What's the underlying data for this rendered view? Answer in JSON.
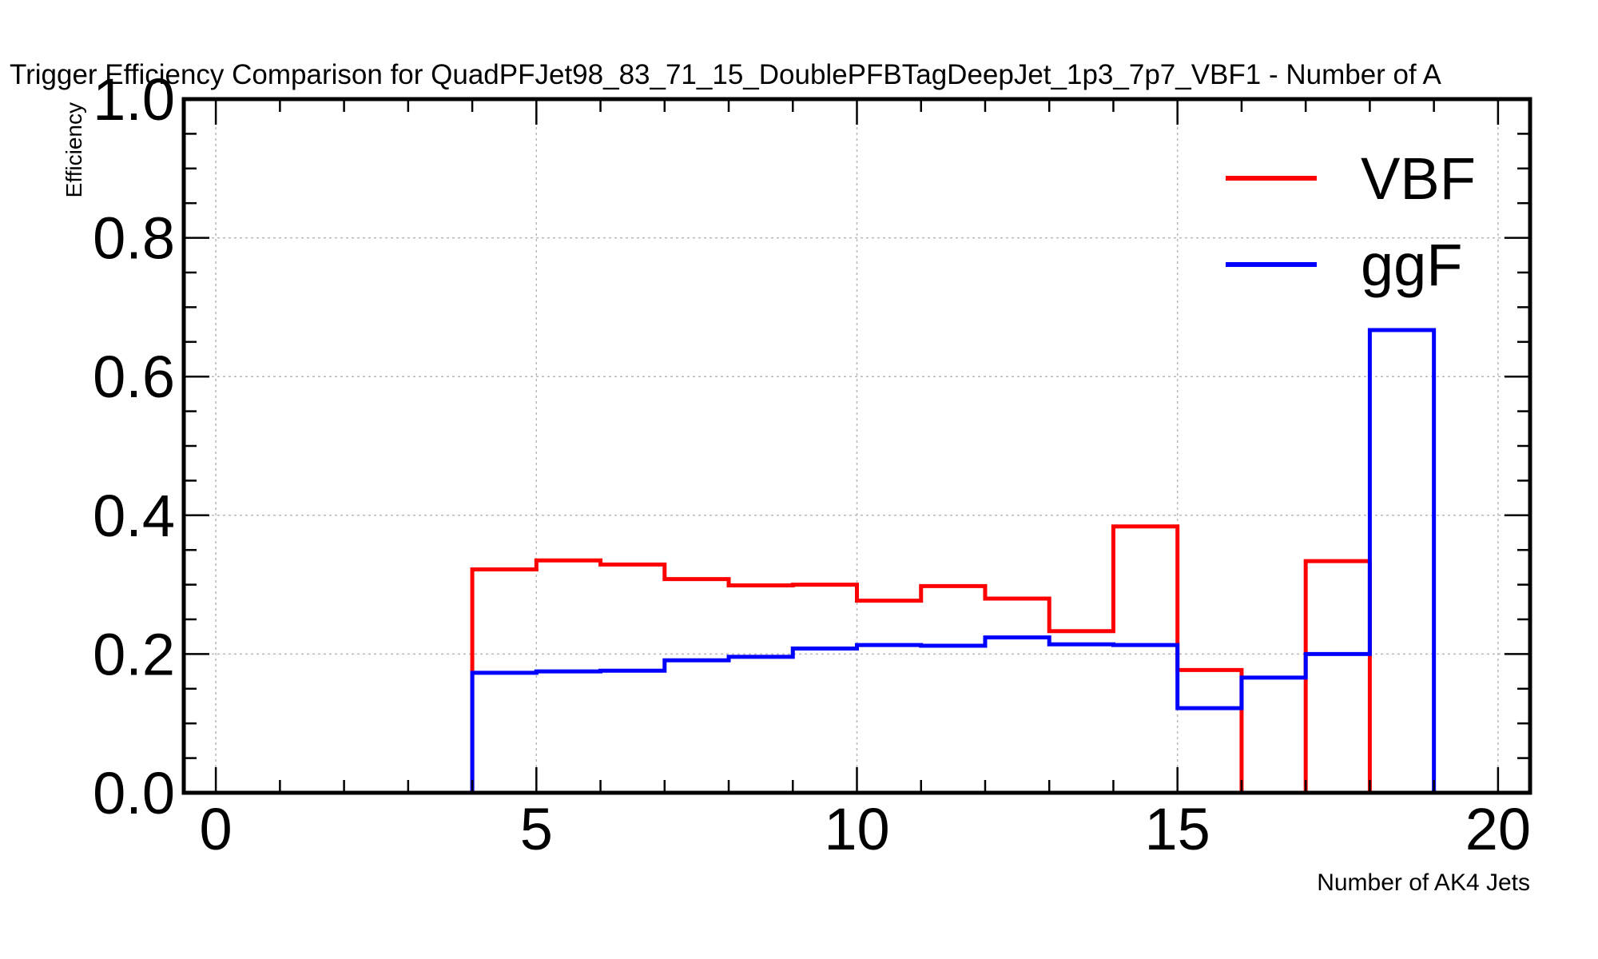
{
  "chart_data": {
    "type": "line",
    "subtype": "step-histogram",
    "title": "Trigger Efficiency Comparison for QuadPFJet98_83_71_15_DoublePFBTagDeepJet_1p3_7p7_VBF1 - Number of A",
    "xlabel": "Number of AK4 Jets",
    "ylabel": "Efficiency",
    "xlim": [
      -0.5,
      20.5
    ],
    "ylim": [
      0.0,
      1.0
    ],
    "xticks": [
      0,
      5,
      10,
      15,
      20
    ],
    "xtick_labels": [
      "0",
      "5",
      "10",
      "15",
      "20"
    ],
    "yticks": [
      0.0,
      0.2,
      0.4,
      0.6,
      0.8,
      1.0
    ],
    "ytick_labels": [
      "0.0",
      "0.2",
      "0.4",
      "0.6",
      "0.8",
      "1.0"
    ],
    "grid": true,
    "legend_position": "top-right",
    "bin_edges": [
      0,
      1,
      2,
      3,
      4,
      5,
      6,
      7,
      8,
      9,
      10,
      11,
      12,
      13,
      14,
      15,
      16,
      17,
      18,
      19,
      20
    ],
    "series": [
      {
        "name": "VBF",
        "color": "#ff0000",
        "values": [
          0,
          0,
          0,
          0,
          0.322,
          0.335,
          0.329,
          0.308,
          0.299,
          0.3,
          0.277,
          0.298,
          0.28,
          0.233,
          0.384,
          0.177,
          0,
          0.334,
          0,
          0
        ]
      },
      {
        "name": "ggF",
        "color": "#0000ff",
        "values": [
          0,
          0,
          0,
          0,
          0.173,
          0.175,
          0.176,
          0.191,
          0.196,
          0.208,
          0.213,
          0.212,
          0.224,
          0.214,
          0.213,
          0.122,
          0.166,
          0.2,
          0.667,
          0
        ]
      }
    ]
  }
}
